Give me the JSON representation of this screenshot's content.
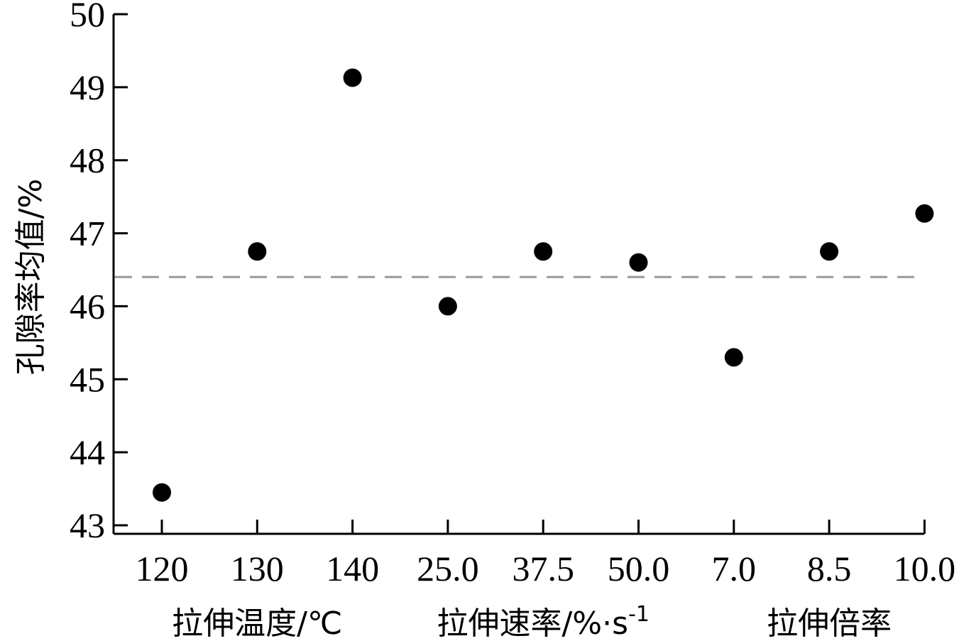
{
  "chart_data": {
    "type": "scatter",
    "ylabel": "孔隙率均值/%",
    "ylim": [
      43,
      50
    ],
    "yticks": [
      43,
      44,
      45,
      46,
      47,
      48,
      49,
      50
    ],
    "categories": [
      "120",
      "130",
      "140",
      "25.0",
      "37.5",
      "50.0",
      "7.0",
      "8.5",
      "10.0"
    ],
    "values": [
      43.45,
      46.75,
      49.13,
      46.0,
      46.75,
      46.6,
      45.3,
      46.75,
      47.27
    ],
    "groups": [
      {
        "label": "拉伸温度/℃",
        "categories": [
          "120",
          "130",
          "140"
        ]
      },
      {
        "label": "拉伸速率/%·s",
        "label_sup": "-1",
        "categories": [
          "25.0",
          "37.5",
          "50.0"
        ]
      },
      {
        "label": "拉伸倍率",
        "categories": [
          "7.0",
          "8.5",
          "10.0"
        ]
      }
    ],
    "reference_line": {
      "y": 46.4,
      "style": "dashed",
      "color": "#9a9a9a"
    },
    "marker_color": "#000000",
    "grid": false
  }
}
